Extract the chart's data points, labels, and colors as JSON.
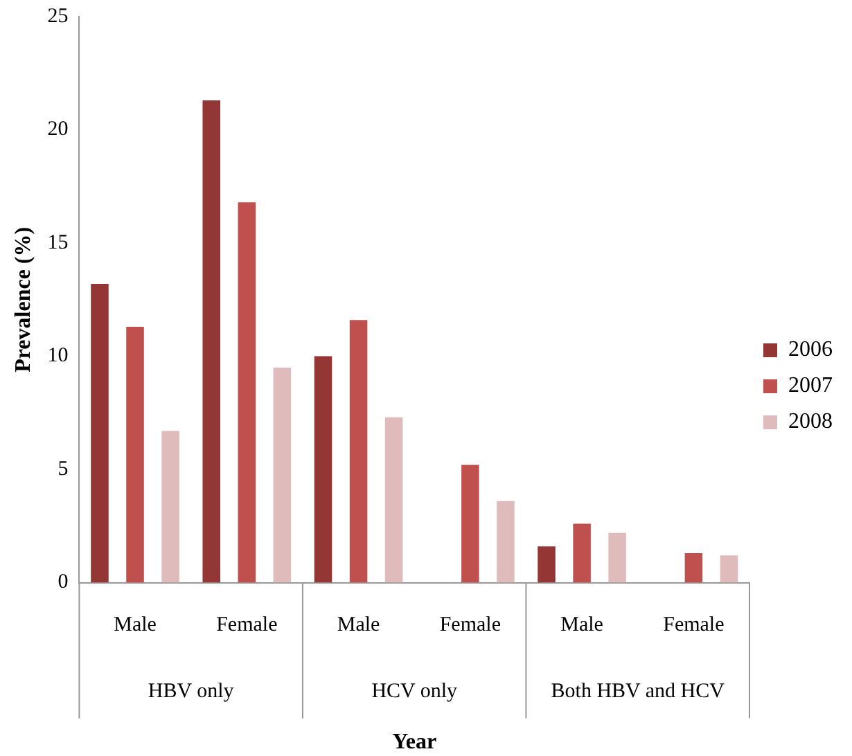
{
  "chart_data": {
    "type": "bar",
    "categories": [
      "Male",
      "Female",
      "Male",
      "Female",
      "Male",
      "Female"
    ],
    "series": [
      {
        "name": "2006",
        "color": "#943634",
        "values": [
          13.2,
          21.3,
          10.0,
          null,
          1.6,
          null
        ]
      },
      {
        "name": "2007",
        "color": "#c0504d",
        "values": [
          11.3,
          16.8,
          11.6,
          5.2,
          2.6,
          1.3
        ]
      },
      {
        "name": "2008",
        "color": "#e0bbbb",
        "values": [
          6.7,
          9.5,
          7.3,
          3.6,
          2.2,
          1.2
        ]
      }
    ],
    "ylim": [
      0,
      25
    ],
    "yticks": [
      0,
      5,
      10,
      15,
      20,
      25
    ],
    "ylabel": "Prevalence (%)",
    "xlabel": "Year",
    "legend": "right",
    "grid": false,
    "annotations": [
      "HBV only",
      "HCV only",
      "Both HBV and HCV"
    ]
  }
}
